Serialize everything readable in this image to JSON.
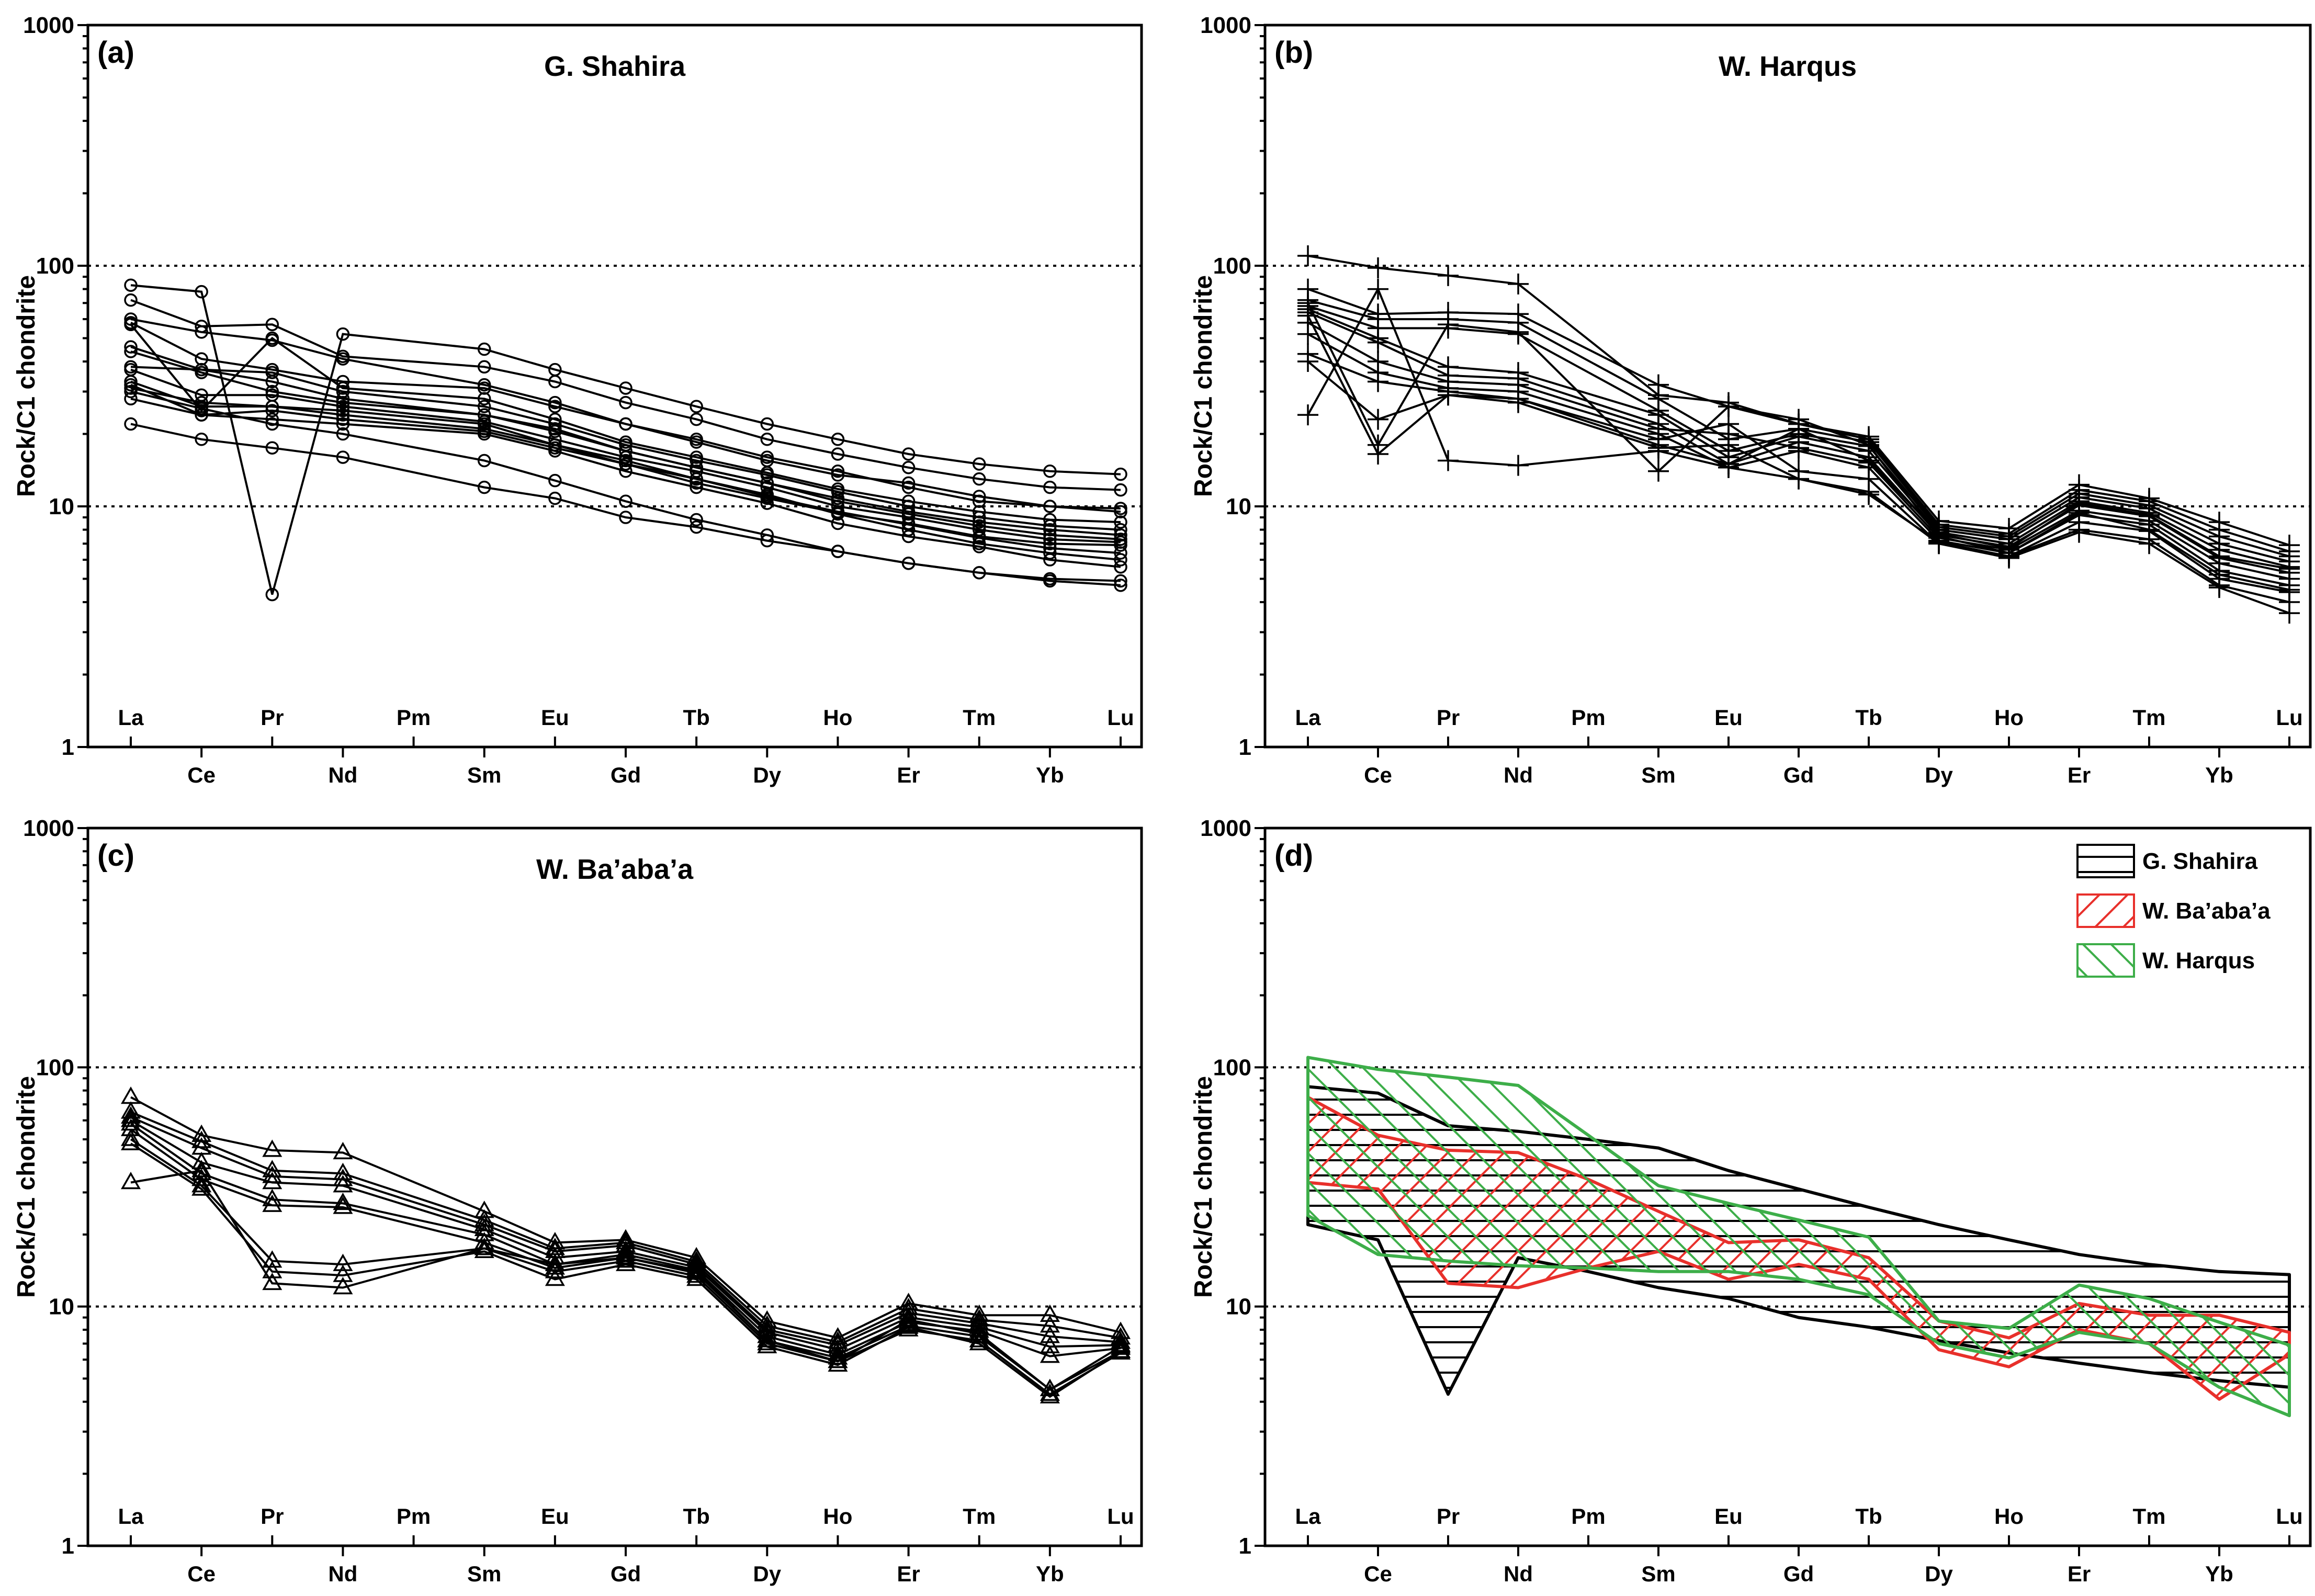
{
  "chart_data": [
    {
      "id": "a",
      "panel_label": "(a)",
      "title": "G. Shahira",
      "type": "line",
      "marker": "circle",
      "ylabel": "Rock/C1 chondrite",
      "yscale": "log",
      "ylim": [
        1,
        1000
      ],
      "yticks": [
        1,
        10,
        100,
        1000
      ],
      "categories": [
        "La",
        "Ce",
        "Pr",
        "Nd",
        "Pm",
        "Sm",
        "Eu",
        "Gd",
        "Tb",
        "Dy",
        "Ho",
        "Er",
        "Tm",
        "Yb",
        "Lu"
      ],
      "missing_category": "Pm",
      "series": [
        {
          "name": "s1",
          "values": [
            83,
            78,
            4.3,
            52,
            null,
            45,
            37,
            31,
            26,
            22,
            19,
            16.5,
            15,
            14,
            13.6
          ]
        },
        {
          "name": "s2",
          "values": [
            72,
            56,
            57,
            42,
            null,
            38,
            33,
            27,
            23,
            19,
            16.5,
            14.5,
            13,
            12,
            11.7
          ]
        },
        {
          "name": "s3",
          "values": [
            60,
            53,
            49,
            41,
            null,
            32,
            27,
            22,
            18.5,
            15.5,
            13.5,
            12.5,
            11,
            10,
            9.8
          ]
        },
        {
          "name": "s4",
          "values": [
            58,
            41,
            37,
            33,
            null,
            31,
            26,
            22,
            19,
            16,
            14,
            12,
            10.5,
            10,
            9.5
          ]
        },
        {
          "name": "s5",
          "values": [
            46,
            37,
            36,
            30,
            null,
            26,
            22,
            18,
            15.5,
            13.5,
            11.5,
            10,
            9,
            8.3,
            8
          ]
        },
        {
          "name": "s6",
          "values": [
            44,
            36,
            30,
            27,
            null,
            24,
            21,
            17,
            14.5,
            12.5,
            10.5,
            9.3,
            8.3,
            7.6,
            7.3
          ]
        },
        {
          "name": "s7",
          "values": [
            37,
            29,
            29,
            26,
            null,
            22.5,
            19,
            16,
            14,
            12,
            10,
            9,
            8,
            7.3,
            7.1
          ]
        },
        {
          "name": "s8",
          "values": [
            33,
            26,
            26,
            25,
            null,
            22,
            18,
            15,
            13,
            11.2,
            9.3,
            8,
            7,
            6.4,
            6
          ]
        },
        {
          "name": "s9",
          "values": [
            32,
            24,
            23,
            22,
            null,
            20,
            17,
            14,
            12,
            10.3,
            8.5,
            7.5,
            6.8,
            6,
            5.6
          ]
        },
        {
          "name": "s10",
          "values": [
            28,
            24,
            25,
            23,
            null,
            20.5,
            17.5,
            15,
            12.5,
            10.8,
            9.4,
            8.5,
            7.5,
            7,
            6.9
          ]
        },
        {
          "name": "s11",
          "values": [
            22,
            19,
            17.5,
            16,
            null,
            12,
            10.8,
            9,
            8.2,
            7.2,
            6.5,
            5.8,
            5.3,
            4.9,
            4.7
          ]
        },
        {
          "name": "s12",
          "values": [
            57,
            25,
            50,
            31,
            null,
            28,
            23,
            18.5,
            16,
            13.8,
            11.8,
            10.5,
            9.5,
            8.8,
            8.6
          ]
        },
        {
          "name": "s13",
          "values": [
            31,
            27,
            26,
            24,
            null,
            21,
            18,
            15.5,
            13,
            11,
            9.5,
            8.4,
            7.4,
            6.7,
            6.4
          ]
        },
        {
          "name": "s14",
          "values": [
            38,
            37,
            33,
            28,
            null,
            24,
            20.5,
            17,
            14.5,
            12.5,
            10.8,
            9.5,
            8.6,
            8,
            7.6
          ]
        },
        {
          "name": "s15",
          "values": [
            30,
            25.5,
            22,
            20,
            null,
            15.5,
            12.8,
            10.5,
            8.8,
            7.6,
            6.5,
            5.8,
            5.3,
            5,
            4.9
          ]
        }
      ]
    },
    {
      "id": "b",
      "panel_label": "(b)",
      "title": "W. Harqus",
      "type": "line",
      "marker": "plus",
      "ylabel": "Rock/C1 chondrite",
      "yscale": "log",
      "ylim": [
        1,
        1000
      ],
      "yticks": [
        1,
        10,
        100,
        1000
      ],
      "categories": [
        "La",
        "Ce",
        "Pr",
        "Nd",
        "Pm",
        "Sm",
        "Eu",
        "Gd",
        "Tb",
        "Dy",
        "Ho",
        "Er",
        "Tm",
        "Yb",
        "Lu"
      ],
      "missing_category": "Pm",
      "series": [
        {
          "name": "s1",
          "values": [
            110,
            98,
            91,
            84,
            null,
            29,
            27,
            22,
            19.5,
            8.7,
            8.1,
            12.3,
            10.8,
            8.6,
            6.9
          ]
        },
        {
          "name": "s2",
          "values": [
            80,
            63,
            64,
            63,
            null,
            32,
            26,
            22,
            19,
            8.4,
            7.7,
            11.7,
            10.5,
            8,
            6.5
          ]
        },
        {
          "name": "s3",
          "values": [
            72,
            60,
            60,
            58,
            null,
            28,
            19,
            21,
            18.5,
            8.2,
            7.5,
            11.3,
            10.1,
            7.5,
            6.2
          ]
        },
        {
          "name": "s4",
          "values": [
            68,
            55,
            55,
            52,
            null,
            25,
            17,
            20,
            17.8,
            8,
            7.3,
            10.9,
            9.8,
            7,
            5.9
          ]
        },
        {
          "name": "s5",
          "values": [
            66,
            50,
            38,
            36,
            null,
            24,
            16,
            19.5,
            17,
            7.8,
            7,
            10.5,
            9.4,
            6.6,
            5.6
          ]
        },
        {
          "name": "s6",
          "values": [
            64,
            48,
            35,
            34,
            null,
            22,
            15,
            18.5,
            16,
            7.6,
            6.8,
            10.1,
            9.1,
            6.1,
            5.3
          ]
        },
        {
          "name": "s7",
          "values": [
            58,
            40,
            33,
            32,
            null,
            21,
            20,
            17.5,
            15.2,
            7.4,
            6.6,
            9.6,
            8.7,
            5.8,
            5
          ]
        },
        {
          "name": "s8",
          "values": [
            52,
            36,
            31,
            30,
            null,
            20,
            14.5,
            17,
            14.5,
            7.2,
            6.4,
            9.2,
            8.4,
            5.4,
            4.7
          ]
        },
        {
          "name": "s9",
          "values": [
            43,
            33,
            30,
            28,
            null,
            19,
            22,
            14,
            13,
            7,
            6.2,
            8.6,
            7.9,
            5,
            4.4
          ]
        },
        {
          "name": "s10",
          "values": [
            40,
            23,
            29,
            27,
            null,
            17.5,
            18,
            13,
            11.5,
            7,
            6.1,
            7.8,
            7,
            4.6,
            3.6
          ]
        },
        {
          "name": "s11",
          "values": [
            24,
            80,
            15.5,
            14.8,
            null,
            17,
            14.5,
            13,
            11.2,
            7.1,
            6.2,
            8,
            7.3,
            4.7,
            4
          ]
        },
        {
          "name": "s12",
          "values": [
            70,
            18,
            57,
            53,
            null,
            14,
            26,
            23,
            18,
            7.5,
            6.4,
            9.4,
            8,
            5.2,
            4.5
          ]
        },
        {
          "name": "s13",
          "values": [
            62,
            16.5,
            29,
            28,
            null,
            18,
            15,
            21,
            15.5,
            7.7,
            6.7,
            10.3,
            9.2,
            6.2,
            5.5
          ]
        }
      ]
    },
    {
      "id": "c",
      "panel_label": "(c)",
      "title": "W. Ba’aba’a",
      "type": "line",
      "marker": "triangle",
      "ylabel": "Rock/C1 chondrite",
      "yscale": "log",
      "ylim": [
        1,
        1000
      ],
      "yticks": [
        1,
        10,
        100,
        1000
      ],
      "categories": [
        "La",
        "Ce",
        "Pr",
        "Nd",
        "Pm",
        "Sm",
        "Eu",
        "Gd",
        "Tb",
        "Dy",
        "Ho",
        "Er",
        "Tm",
        "Yb",
        "Lu"
      ],
      "missing_category": "Pm",
      "series": [
        {
          "name": "s1",
          "values": [
            75,
            52,
            45,
            44,
            null,
            25,
            18.5,
            19,
            16,
            8.7,
            7.4,
            10.3,
            9.2,
            9.2,
            7.8
          ]
        },
        {
          "name": "s2",
          "values": [
            65,
            49,
            37,
            36,
            null,
            23,
            17.5,
            18.5,
            15.4,
            8.3,
            7.1,
            9.8,
            8.8,
            8.3,
            7.4
          ]
        },
        {
          "name": "s3",
          "values": [
            62,
            46,
            35,
            34,
            null,
            22,
            17,
            18,
            15,
            8,
            6.9,
            9.4,
            8.5,
            7.5,
            7.1
          ]
        },
        {
          "name": "s4",
          "values": [
            60,
            40,
            33,
            32,
            null,
            21,
            16,
            17,
            14.6,
            7.8,
            6.6,
            9,
            8.2,
            6.8,
            6.9
          ]
        },
        {
          "name": "s5",
          "values": [
            58,
            36,
            28,
            27,
            null,
            20,
            15,
            16.5,
            14.2,
            7.5,
            6.3,
            8.6,
            7.9,
            6.2,
            6.7
          ]
        },
        {
          "name": "s6",
          "values": [
            55,
            34,
            26.5,
            26,
            null,
            18.5,
            14.5,
            16,
            13.8,
            7.2,
            6.1,
            8.3,
            7.5,
            4.5,
            6.5
          ]
        },
        {
          "name": "s7",
          "values": [
            50,
            32,
            15.5,
            15,
            null,
            17.5,
            14,
            15.5,
            13.4,
            7,
            5.9,
            8,
            7.2,
            4.3,
            6.4
          ]
        },
        {
          "name": "s8",
          "values": [
            48,
            31,
            14,
            13.5,
            null,
            17,
            13,
            15,
            13,
            6.8,
            5.7,
            8.2,
            7,
            4.2,
            6.5
          ]
        },
        {
          "name": "s9",
          "values": [
            33,
            37,
            12.5,
            12,
            null,
            17.5,
            15,
            16,
            14,
            7.2,
            5.9,
            8.8,
            7.7,
            4.5,
            6.8
          ]
        }
      ]
    },
    {
      "id": "d",
      "panel_label": "(d)",
      "title": "",
      "type": "area",
      "ylabel": "Rock/C1 chondrite",
      "yscale": "log",
      "ylim": [
        1,
        1000
      ],
      "yticks": [
        1,
        10,
        100,
        1000
      ],
      "categories": [
        "La",
        "Ce",
        "Pr",
        "Nd",
        "Pm",
        "Sm",
        "Eu",
        "Gd",
        "Tb",
        "Dy",
        "Ho",
        "Er",
        "Tm",
        "Yb",
        "Lu"
      ],
      "legend": {
        "position": "top-right",
        "entries": [
          "G. Shahira",
          "W. Ba’aba’a",
          "W. Harqus"
        ]
      },
      "series": [
        {
          "name": "G. Shahira",
          "color": "#000000",
          "hatch": "horizontal",
          "upper": [
            83,
            78,
            57,
            54,
            50,
            46,
            37,
            31,
            26,
            22,
            19,
            16.5,
            15,
            14,
            13.6
          ],
          "lower": [
            22,
            19,
            4.3,
            16,
            14,
            12,
            10.8,
            9,
            8.2,
            7.2,
            6.4,
            5.8,
            5.3,
            4.9,
            4.6
          ]
        },
        {
          "name": "W. Ba’aba’a",
          "color": "#e8302b",
          "hatch": "diagonal",
          "upper": [
            75,
            52,
            45,
            44,
            34,
            25,
            18.5,
            19,
            16,
            8.7,
            7.4,
            10.3,
            9.2,
            9.2,
            7.8
          ],
          "lower": [
            33,
            31,
            12.5,
            12,
            14.5,
            17,
            13,
            15,
            13,
            6.6,
            5.6,
            8,
            7,
            4.1,
            6.3
          ]
        },
        {
          "name": "W. Harqus",
          "color": "#3dae49",
          "hatch": "cross-diagonal",
          "upper": [
            110,
            98,
            91,
            84,
            52,
            32,
            27,
            23,
            19.5,
            8.7,
            8.1,
            12.3,
            10.8,
            8.6,
            6.9
          ],
          "lower": [
            24,
            16.5,
            15.5,
            14.8,
            14.5,
            14,
            14,
            13,
            11.2,
            7,
            6.1,
            7.8,
            7,
            4.6,
            3.5
          ]
        }
      ]
    }
  ]
}
